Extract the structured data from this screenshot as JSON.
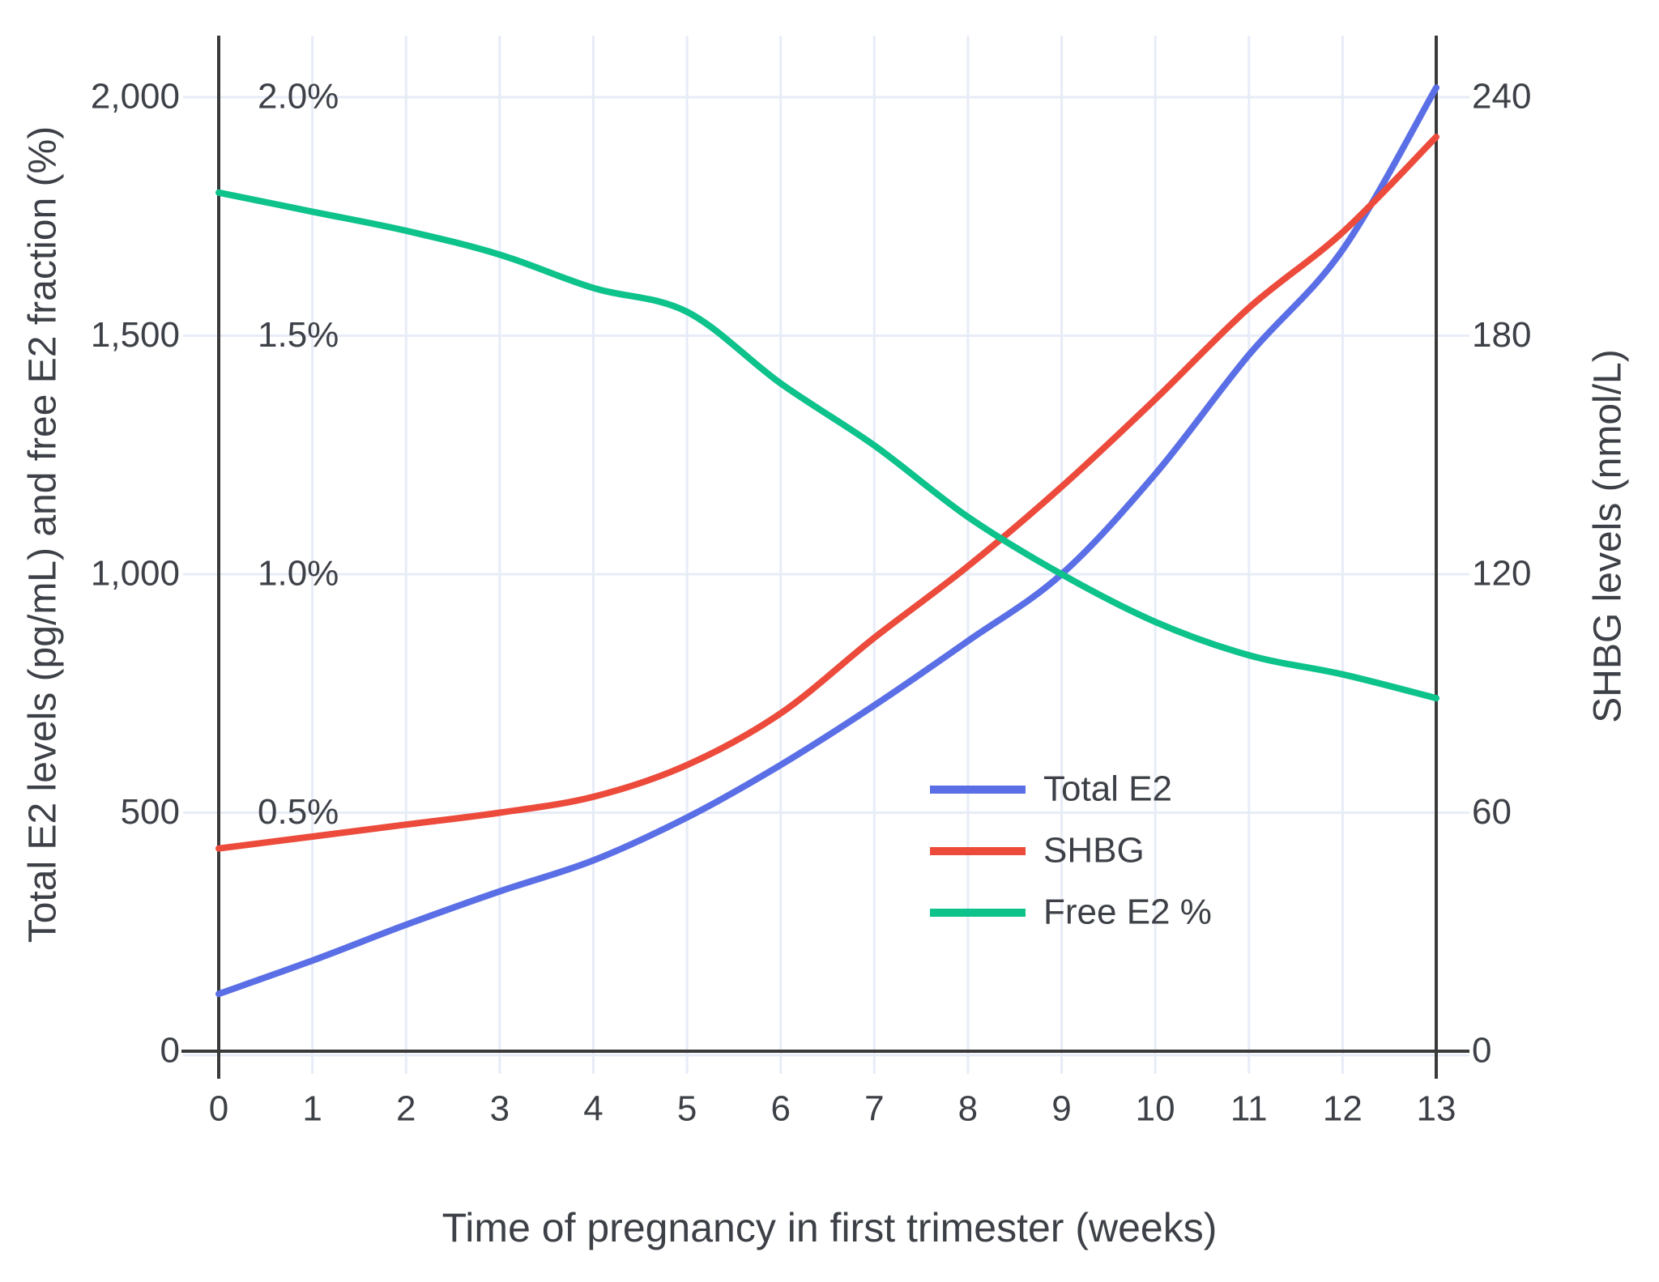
{
  "chart_data": {
    "type": "line",
    "x_weeks": [
      0,
      1,
      2,
      3,
      4,
      5,
      6,
      7,
      8,
      9,
      10,
      11,
      12,
      13
    ],
    "series": [
      {
        "name": "Total E2",
        "axis": "left",
        "unit": "pg/mL",
        "color": "#5a6fe6",
        "values": [
          120,
          190,
          265,
          335,
          400,
          490,
          600,
          725,
          860,
          1000,
          1210,
          1460,
          1680,
          2020
        ]
      },
      {
        "name": "SHBG",
        "axis": "right",
        "unit": "nmol/L",
        "color": "#ec4b3c",
        "values": [
          51,
          54,
          57,
          60,
          64,
          72,
          85,
          104,
          122,
          142,
          164,
          187,
          206,
          230
        ]
      },
      {
        "name": "Free E2 %",
        "axis": "percent",
        "unit": "%",
        "color": "#0dc28b",
        "values": [
          1.8,
          1.76,
          1.72,
          1.67,
          1.6,
          1.55,
          1.4,
          1.27,
          1.12,
          1.0,
          0.9,
          0.83,
          0.79,
          0.74
        ]
      }
    ],
    "axes": {
      "x": {
        "title": "Time of pregnancy in first trimester (weeks)",
        "tick_labels": [
          "0",
          "1",
          "2",
          "3",
          "4",
          "5",
          "6",
          "7",
          "8",
          "9",
          "10",
          "11",
          "12",
          "13"
        ],
        "range": [
          0,
          13
        ]
      },
      "left": {
        "title": "Total E2 levels (pg/mL) and free E2 fraction (%)",
        "tick_values": [
          0,
          500,
          1000,
          1500,
          2000
        ],
        "tick_labels": [
          "0",
          "500",
          "1,000",
          "1,500",
          "2,000"
        ],
        "percent_tick_labels": [
          "0.5%",
          "1.0%",
          "1.5%",
          "2.0%"
        ],
        "percent_tick_values": [
          0.5,
          1.0,
          1.5,
          2.0
        ],
        "range": [
          0,
          2000
        ]
      },
      "right": {
        "title": "SHBG levels (nmol/L)",
        "tick_values": [
          0,
          60,
          120,
          180,
          240
        ],
        "tick_labels": [
          "0",
          "60",
          "120",
          "180",
          "240"
        ],
        "range": [
          0,
          240
        ]
      }
    },
    "legend": {
      "entries": [
        "Total E2",
        "SHBG",
        "Free E2 %"
      ],
      "position": "inside-right-middle"
    },
    "grid": true,
    "colors": {
      "gridline": "#e7ecf7",
      "axis_line": "#3a3a3a",
      "text": "#3d4147"
    }
  }
}
